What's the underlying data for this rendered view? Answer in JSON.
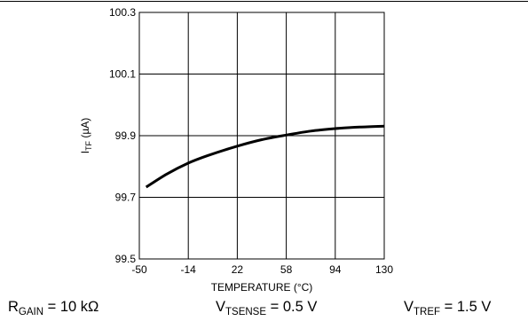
{
  "chart_data": {
    "type": "line",
    "title": "",
    "xlabel": "TEMPERATURE (°C)",
    "ylabel": {
      "main": "I",
      "sub": "TF",
      "unit": " (µA)"
    },
    "xlim": [
      -50,
      130
    ],
    "ylim": [
      99.5,
      100.3
    ],
    "xticks": [
      -50,
      -14,
      22,
      58,
      94,
      130
    ],
    "xtick_labels": [
      "-50",
      "-14",
      "22",
      "58",
      "94",
      "130"
    ],
    "yticks": [
      99.5,
      99.7,
      99.9,
      100.1,
      100.3
    ],
    "ytick_labels": [
      "99.5",
      "99.7",
      "99.9",
      "100.1",
      "100.3"
    ],
    "grid": true,
    "series": [
      {
        "x": [
          -45,
          -30,
          -14,
          0,
          22,
          40,
          58,
          76,
          94,
          112,
          130
        ],
        "y": [
          99.733,
          99.775,
          99.811,
          99.835,
          99.866,
          99.887,
          99.902,
          99.915,
          99.923,
          99.928,
          99.931
        ],
        "color": "#000000"
      }
    ]
  },
  "conditions": [
    {
      "main": "R",
      "sub": "GAIN",
      "rest": " = 10 kΩ"
    },
    {
      "main": "V",
      "sub": "TSENSE",
      "rest": " = 0.5 V"
    },
    {
      "main": "V",
      "sub": "TREF",
      "rest": " = 1.5 V"
    }
  ]
}
